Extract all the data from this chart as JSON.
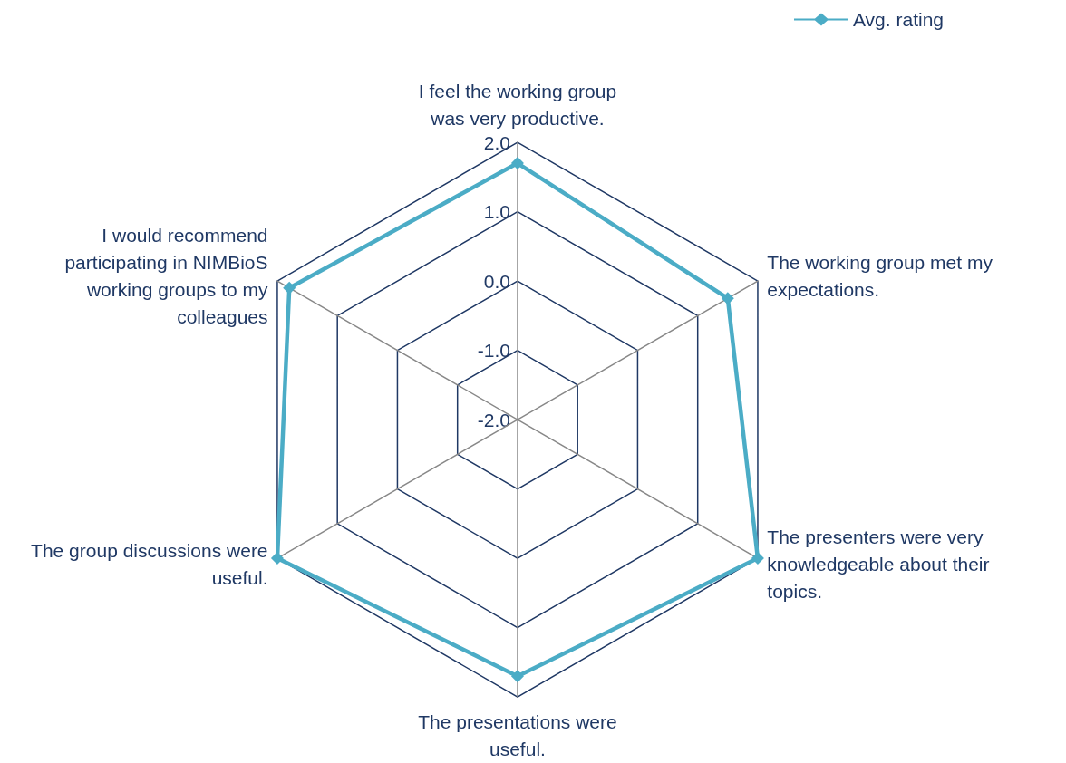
{
  "chart_data": {
    "type": "radar",
    "categories": [
      "I feel the working group was very productive.",
      "The working group met my expectations.",
      "The presenters were very knowledgeable about their topics.",
      "The presentations were useful.",
      "The group discussions were useful.",
      "I would recommend participating in NIMBioS working groups to my colleagues"
    ],
    "series": [
      {
        "name": "Avg. rating",
        "color": "#4bacc6",
        "values": [
          1.7,
          1.5,
          2.0,
          1.7,
          2.0,
          1.8
        ]
      }
    ],
    "ylim": [
      -2,
      2
    ],
    "yticks": [
      {
        "value": -2,
        "label": "-2.0"
      },
      {
        "value": -1,
        "label": "-1.0"
      },
      {
        "value": 0,
        "label": "0.0"
      },
      {
        "value": 1,
        "label": "1.0"
      },
      {
        "value": 2,
        "label": "2.0"
      }
    ],
    "legend": "top right",
    "marker": "diamond",
    "line_style": "solid",
    "grid": true
  }
}
